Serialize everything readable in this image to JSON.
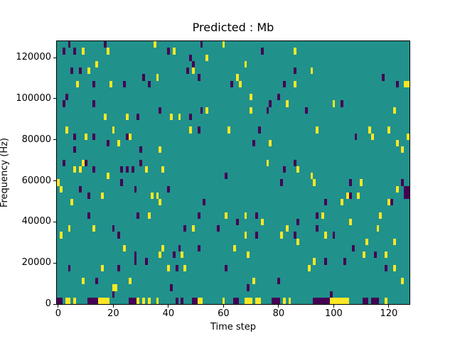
{
  "figure": {
    "title": "Predicted : Mb",
    "x_axis": {
      "label": "Time step",
      "ticks": [
        0,
        20,
        40,
        60,
        80,
        100,
        120
      ],
      "range": [
        0,
        128
      ]
    },
    "y_axis": {
      "label": "Frequency (Hz)",
      "ticks": [
        0,
        20000,
        40000,
        60000,
        80000,
        100000,
        120000
      ],
      "range": [
        0,
        128000
      ]
    }
  },
  "chart_data": {
    "type": "heatmap",
    "title": "Predicted : Mb",
    "xlabel": "Time step",
    "ylabel": "Frequency (Hz)",
    "x_range": [
      0,
      128
    ],
    "y_range": [
      0,
      128000
    ],
    "grid": {
      "cols": 128,
      "rows": 40,
      "row_origin": "top"
    },
    "colormap": "viridis",
    "legend": "none",
    "colors": {
      "background": "#21918c",
      "high": "#fde725",
      "low": "#440154"
    },
    "cells_low": [
      [
        4,
        0
      ],
      [
        17,
        0
      ],
      [
        52,
        0
      ],
      [
        2,
        1
      ],
      [
        6,
        1
      ],
      [
        40,
        1
      ],
      [
        74,
        1
      ],
      [
        48,
        2
      ],
      [
        49,
        3
      ],
      [
        5,
        4
      ],
      [
        8,
        4
      ],
      [
        47,
        4
      ],
      [
        86,
        4
      ],
      [
        31,
        5
      ],
      [
        51,
        5
      ],
      [
        118,
        5
      ],
      [
        13,
        6
      ],
      [
        24,
        6
      ],
      [
        33,
        6
      ],
      [
        63,
        6
      ],
      [
        82,
        6
      ],
      [
        123,
        6
      ],
      [
        3,
        8
      ],
      [
        80,
        8
      ],
      [
        2,
        9
      ],
      [
        13,
        9
      ],
      [
        77,
        9
      ],
      [
        103,
        9
      ],
      [
        37,
        10
      ],
      [
        52,
        10
      ],
      [
        76,
        10
      ],
      [
        90,
        10
      ],
      [
        29,
        11
      ],
      [
        48,
        11
      ],
      [
        51,
        13
      ],
      [
        73,
        13
      ],
      [
        6,
        14
      ],
      [
        13,
        14
      ],
      [
        25,
        14
      ],
      [
        108,
        14
      ],
      [
        18,
        15
      ],
      [
        71,
        15
      ],
      [
        6,
        16
      ],
      [
        30,
        16
      ],
      [
        2,
        18
      ],
      [
        10,
        18
      ],
      [
        30,
        18
      ],
      [
        86,
        18
      ],
      [
        13,
        19
      ],
      [
        23,
        19
      ],
      [
        25,
        19
      ],
      [
        27,
        19
      ],
      [
        82,
        19
      ],
      [
        61,
        20
      ],
      [
        23,
        21
      ],
      [
        81,
        21
      ],
      [
        106,
        21
      ],
      [
        125,
        21
      ],
      [
        8,
        22
      ],
      [
        28,
        22
      ],
      [
        40,
        22
      ],
      [
        126,
        22
      ],
      [
        127,
        22
      ],
      [
        11,
        23
      ],
      [
        106,
        23
      ],
      [
        126,
        23
      ],
      [
        127,
        23
      ],
      [
        53,
        24
      ],
      [
        97,
        24
      ],
      [
        121,
        24
      ],
      [
        11,
        26
      ],
      [
        29,
        26
      ],
      [
        51,
        26
      ],
      [
        72,
        26
      ],
      [
        94,
        26
      ],
      [
        65,
        27
      ],
      [
        87,
        27
      ],
      [
        20,
        28
      ],
      [
        46,
        28
      ],
      [
        58,
        28
      ],
      [
        94,
        28
      ],
      [
        22,
        29
      ],
      [
        72,
        29
      ],
      [
        86,
        29
      ],
      [
        100,
        29
      ],
      [
        44,
        31
      ],
      [
        51,
        31
      ],
      [
        107,
        31
      ],
      [
        28,
        32
      ],
      [
        42,
        32
      ],
      [
        115,
        32
      ],
      [
        28,
        33
      ],
      [
        32,
        33
      ],
      [
        97,
        33
      ],
      [
        104,
        33
      ],
      [
        4,
        34
      ],
      [
        22,
        34
      ],
      [
        43,
        34
      ],
      [
        61,
        34
      ],
      [
        119,
        34
      ],
      [
        14,
        36
      ],
      [
        80,
        36
      ],
      [
        41,
        37
      ],
      [
        69,
        37
      ],
      [
        20,
        38
      ],
      [
        99,
        38
      ],
      [
        0,
        39
      ],
      [
        1,
        39
      ],
      [
        11,
        39
      ],
      [
        12,
        39
      ],
      [
        13,
        39
      ],
      [
        14,
        39
      ],
      [
        26,
        39
      ],
      [
        27,
        39
      ],
      [
        28,
        39
      ],
      [
        43,
        39
      ],
      [
        45,
        39
      ],
      [
        49,
        39
      ],
      [
        50,
        39
      ],
      [
        64,
        39
      ],
      [
        65,
        39
      ],
      [
        78,
        39
      ],
      [
        79,
        39
      ],
      [
        80,
        39
      ],
      [
        93,
        39
      ],
      [
        94,
        39
      ],
      [
        95,
        39
      ],
      [
        96,
        39
      ],
      [
        97,
        39
      ],
      [
        98,
        39
      ],
      [
        111,
        39
      ],
      [
        112,
        39
      ],
      [
        114,
        39
      ],
      [
        115,
        39
      ],
      [
        116,
        39
      ]
    ],
    "cells_high": [
      [
        35,
        0
      ],
      [
        60,
        0
      ],
      [
        9,
        1
      ],
      [
        18,
        1
      ],
      [
        42,
        1
      ],
      [
        86,
        1
      ],
      [
        54,
        2
      ],
      [
        14,
        3
      ],
      [
        68,
        3
      ],
      [
        11,
        4
      ],
      [
        49,
        4
      ],
      [
        92,
        4
      ],
      [
        36,
        5
      ],
      [
        65,
        5
      ],
      [
        7,
        6
      ],
      [
        19,
        6
      ],
      [
        66,
        6
      ],
      [
        86,
        6
      ],
      [
        126,
        6
      ],
      [
        127,
        6
      ],
      [
        70,
        8
      ],
      [
        83,
        9
      ],
      [
        100,
        9
      ],
      [
        54,
        10
      ],
      [
        70,
        10
      ],
      [
        122,
        10
      ],
      [
        17,
        11
      ],
      [
        25,
        11
      ],
      [
        41,
        11
      ],
      [
        44,
        11
      ],
      [
        3,
        13
      ],
      [
        20,
        13
      ],
      [
        48,
        13
      ],
      [
        62,
        13
      ],
      [
        94,
        13
      ],
      [
        113,
        13
      ],
      [
        120,
        13
      ],
      [
        10,
        14
      ],
      [
        26,
        14
      ],
      [
        114,
        14
      ],
      [
        127,
        14
      ],
      [
        22,
        15
      ],
      [
        77,
        15
      ],
      [
        123,
        15
      ],
      [
        37,
        16
      ],
      [
        125,
        16
      ],
      [
        9,
        18
      ],
      [
        76,
        18
      ],
      [
        6,
        19
      ],
      [
        8,
        19
      ],
      [
        32,
        19
      ],
      [
        38,
        19
      ],
      [
        87,
        19
      ],
      [
        18,
        20
      ],
      [
        92,
        20
      ],
      [
        0,
        21
      ],
      [
        93,
        21
      ],
      [
        110,
        21
      ],
      [
        1,
        22
      ],
      [
        123,
        22
      ],
      [
        16,
        23
      ],
      [
        34,
        23
      ],
      [
        36,
        23
      ],
      [
        105,
        23
      ],
      [
        109,
        23
      ],
      [
        5,
        24
      ],
      [
        37,
        24
      ],
      [
        103,
        24
      ],
      [
        120,
        24
      ],
      [
        33,
        26
      ],
      [
        61,
        26
      ],
      [
        68,
        26
      ],
      [
        96,
        26
      ],
      [
        117,
        26
      ],
      [
        74,
        27
      ],
      [
        106,
        27
      ],
      [
        4,
        28
      ],
      [
        13,
        28
      ],
      [
        49,
        28
      ],
      [
        83,
        28
      ],
      [
        116,
        28
      ],
      [
        1,
        29
      ],
      [
        68,
        29
      ],
      [
        81,
        29
      ],
      [
        97,
        29
      ],
      [
        87,
        30
      ],
      [
        112,
        30
      ],
      [
        122,
        30
      ],
      [
        24,
        31
      ],
      [
        38,
        31
      ],
      [
        64,
        31
      ],
      [
        37,
        32
      ],
      [
        45,
        32
      ],
      [
        69,
        32
      ],
      [
        111,
        32
      ],
      [
        119,
        32
      ],
      [
        93,
        33
      ],
      [
        16,
        34
      ],
      [
        40,
        34
      ],
      [
        46,
        34
      ],
      [
        91,
        34
      ],
      [
        122,
        34
      ],
      [
        9,
        36
      ],
      [
        26,
        36
      ],
      [
        71,
        36
      ],
      [
        125,
        36
      ],
      [
        20,
        37
      ],
      [
        21,
        37
      ],
      [
        3,
        39
      ],
      [
        4,
        39
      ],
      [
        6,
        39
      ],
      [
        15,
        39
      ],
      [
        16,
        39
      ],
      [
        17,
        39
      ],
      [
        18,
        39
      ],
      [
        29,
        39
      ],
      [
        31,
        39
      ],
      [
        33,
        39
      ],
      [
        36,
        39
      ],
      [
        51,
        39
      ],
      [
        52,
        39
      ],
      [
        60,
        39
      ],
      [
        68,
        39
      ],
      [
        69,
        39
      ],
      [
        70,
        39
      ],
      [
        72,
        39
      ],
      [
        73,
        39
      ],
      [
        82,
        39
      ],
      [
        84,
        39
      ],
      [
        99,
        39
      ],
      [
        100,
        39
      ],
      [
        101,
        39
      ],
      [
        102,
        39
      ],
      [
        103,
        39
      ],
      [
        104,
        39
      ],
      [
        105,
        39
      ],
      [
        119,
        39
      ]
    ]
  }
}
